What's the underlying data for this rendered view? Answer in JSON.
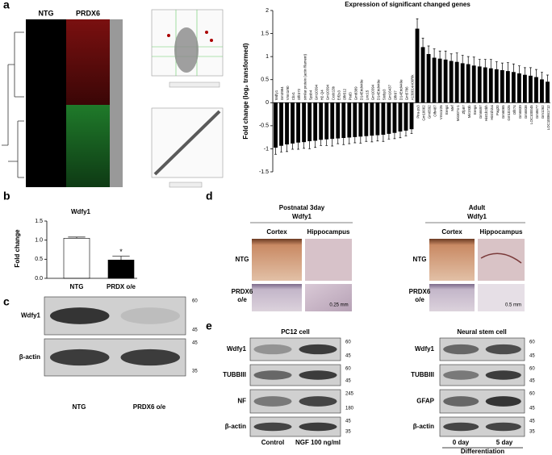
{
  "chart_data": [
    {
      "type": "bar",
      "title": "Expression of significant changed genes",
      "y_label": "Fold change (log₂ transformed)",
      "categories": [
        "Wdfy1",
        "Gm3984",
        "Vmn1r90",
        "Cbx1",
        "Olfr372",
        "similar protein (actin filament)",
        "Spsb4",
        "Gm10394",
        "H2-Q4",
        "Gm10394",
        "Ccdc13b",
        "Eif2s3",
        "Olfr512",
        "Psd3",
        "Gm8389",
        "D14Ertd449e",
        "Lrrc15",
        "Gm10394",
        "D14Ertd449e",
        "Stxbp3",
        "Gm16437",
        "Olfr97",
        "D14Ertd449e",
        "Gm5786",
        "A130014A06Rik",
        "Pira-ps3",
        "Gm10002",
        "Gm6592",
        "Olfr487",
        "Vmn1r25",
        "Ereg4",
        "Mef",
        "Mir3074-1",
        "Zfp87",
        "Mir193b",
        "Ereg4",
        "Gm6697",
        "Hist1h2bh",
        "Hist1h2ai",
        "Pag20",
        "Gm6065",
        "Gm10325",
        "Olfr74",
        "Gm6839",
        "Gm6838",
        "LOC100045",
        "Gm8677",
        "Gm1262",
        "LOC100861712"
      ],
      "values": [
        -0.97,
        -0.93,
        -0.9,
        -0.88,
        -0.86,
        -0.85,
        -0.83,
        -0.82,
        -0.8,
        -0.79,
        -0.78,
        -0.77,
        -0.76,
        -0.75,
        -0.74,
        -0.73,
        -0.72,
        -0.71,
        -0.7,
        -0.69,
        -0.67,
        -0.65,
        -0.62,
        -0.6,
        -0.57,
        1.6,
        1.2,
        1.05,
        0.97,
        0.95,
        0.93,
        0.9,
        0.88,
        0.85,
        0.83,
        0.8,
        0.78,
        0.76,
        0.74,
        0.72,
        0.7,
        0.68,
        0.66,
        0.63,
        0.6,
        0.58,
        0.55,
        0.5,
        0.45
      ],
      "errors": [
        0.15,
        0.14,
        0.16,
        0.13,
        0.15,
        0.14,
        0.17,
        0.15,
        0.13,
        0.14,
        0.16,
        0.12,
        0.15,
        0.14,
        0.13,
        0.15,
        0.12,
        0.14,
        0.13,
        0.15,
        0.12,
        0.13,
        0.14,
        0.12,
        0.1,
        0.22,
        0.2,
        0.18,
        0.2,
        0.17,
        0.19,
        0.16,
        0.2,
        0.18,
        0.17,
        0.19,
        0.16,
        0.18,
        0.2,
        0.17,
        0.16,
        0.19,
        0.18,
        0.17,
        0.16,
        0.18,
        0.17,
        0.16,
        0.15
      ],
      "color": "#000000",
      "ylim": [
        -1.5,
        2
      ],
      "yticks": [
        -1.5,
        -1,
        -0.5,
        0,
        0.5,
        1,
        1.5,
        2
      ]
    },
    {
      "type": "bar",
      "title": "Wdfy1",
      "y_label": "Fold change",
      "categories": [
        "NTG",
        "PRDX o/e"
      ],
      "values": [
        1.05,
        0.48
      ],
      "errors": [
        0.03,
        0.1
      ],
      "colors": [
        "#ffffff",
        "#000000"
      ],
      "annotation": "*",
      "ylim": [
        0,
        1.5
      ],
      "yticks": [
        {
          "value": 0,
          "label": "0.0"
        },
        {
          "value": 0.5,
          "label": "0.5"
        },
        {
          "value": 1,
          "label": "1.0"
        },
        {
          "value": 1.5,
          "label": "1.5"
        }
      ]
    }
  ],
  "panel_labels": [
    "a",
    "b",
    "c",
    "d",
    "e"
  ],
  "heatmap": {
    "columns": [
      "NTG",
      "PRDX6"
    ]
  },
  "blot_c": {
    "rows": [
      {
        "label": "Wdfy1",
        "markers": [
          "60",
          "45"
        ]
      },
      {
        "label": "β-actin",
        "markers": [
          "45",
          "35"
        ]
      }
    ],
    "lanes": [
      "NTG",
      "PRDX6 o/e"
    ]
  },
  "ihc": [
    {
      "title": "Postnatal 3day",
      "subtitle": "Wdfy1",
      "columns": [
        "Cortex",
        "Hippocampus"
      ],
      "rows": [
        [
          "NTG"
        ],
        [
          "PRDX6",
          "o/e"
        ]
      ],
      "scale": "0.25 mm"
    },
    {
      "title": "Adult",
      "subtitle": "Wdfy1",
      "columns": [
        "Cortex",
        "Hippocampus"
      ],
      "rows": [
        [
          "NTG"
        ],
        [
          "PRDX6",
          "o/e"
        ]
      ],
      "scale": "0.5 mm"
    }
  ],
  "blot_e": [
    {
      "title": "PC12 cell",
      "rows": [
        {
          "label": "Wdfy1",
          "markers": [
            "60",
            "45"
          ]
        },
        {
          "label": "TUBBIII",
          "markers": [
            "60",
            "45"
          ]
        },
        {
          "label": "NF",
          "markers": [
            "245",
            "180"
          ]
        },
        {
          "label": "β-actin",
          "markers": [
            "45",
            "35"
          ]
        }
      ],
      "lanes": [
        "Control",
        "NGF 100 ng/ml"
      ]
    },
    {
      "title": "Neural stem cell",
      "rows": [
        {
          "label": "Wdfy1",
          "markers": [
            "60",
            "45"
          ]
        },
        {
          "label": "TUBBIII",
          "markers": [
            "60",
            "45"
          ]
        },
        {
          "label": "GFAP",
          "markers": [
            "60",
            "45"
          ]
        },
        {
          "label": "β-actin",
          "markers": [
            "45",
            "35"
          ]
        }
      ],
      "lanes": [
        "0 day",
        "5 day"
      ],
      "group": "Differentiation"
    }
  ]
}
